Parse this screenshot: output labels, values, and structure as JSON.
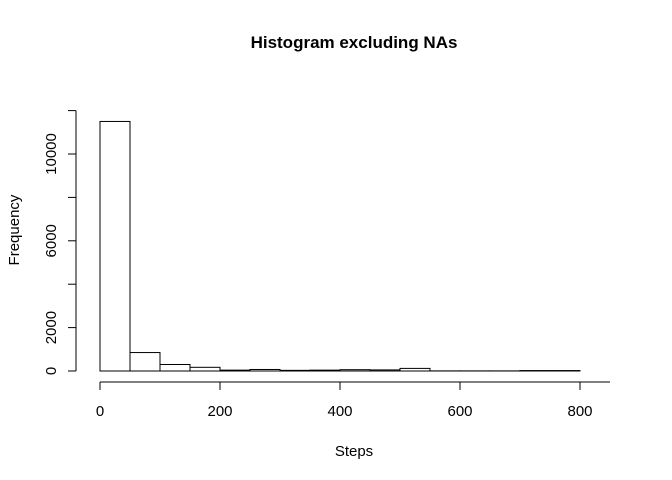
{
  "chart_data": {
    "type": "bar",
    "title": "Histogram excluding NAs",
    "xlabel": "Steps",
    "ylabel": "Frequency",
    "bin_edges": [
      0,
      50,
      100,
      150,
      200,
      250,
      300,
      350,
      400,
      450,
      500,
      550,
      600,
      650,
      700,
      750,
      800
    ],
    "values": [
      11500,
      850,
      300,
      170,
      40,
      70,
      30,
      40,
      60,
      50,
      120,
      5,
      5,
      5,
      20,
      20
    ],
    "xlim": [
      0,
      850
    ],
    "ylim": [
      0,
      12000
    ],
    "x_ticks": [
      0,
      200,
      400,
      600,
      800
    ],
    "y_ticks": [
      0,
      2000,
      6000,
      10000
    ],
    "grid": false,
    "legend": "none"
  },
  "colors": {
    "bar_fill": "#ffffff",
    "bar_stroke": "#000000"
  }
}
